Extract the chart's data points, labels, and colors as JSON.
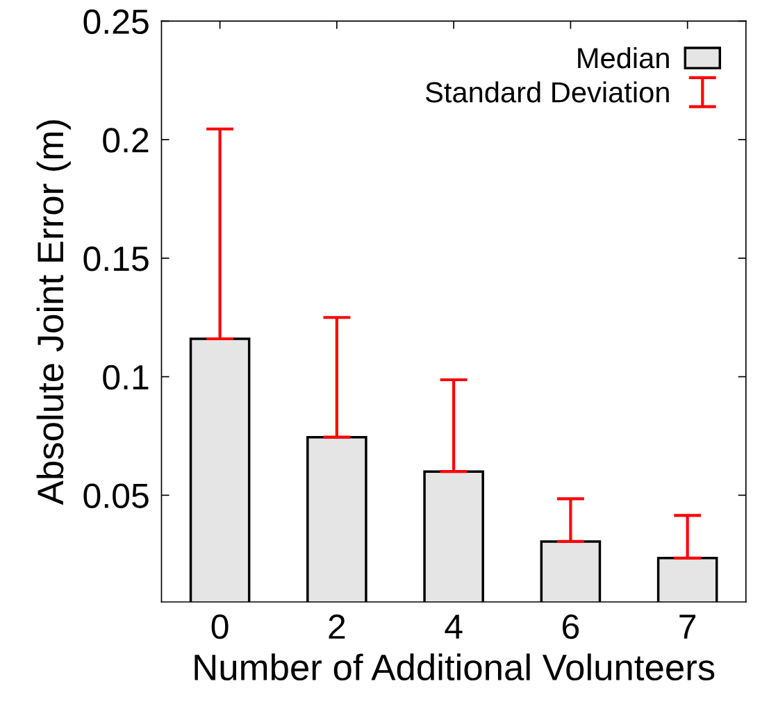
{
  "chart_data": {
    "type": "bar",
    "xlabel": "Number of Additional Volunteers",
    "ylabel": "Absolute Joint Error (m)",
    "categories": [
      "0",
      "2",
      "4",
      "6",
      "7"
    ],
    "series": [
      {
        "name": "Median",
        "color": "#e5e5e5",
        "values": [
          0.116,
          0.0745,
          0.06,
          0.0305,
          0.0235
        ],
        "errors": [
          [
            0.116,
            0.2045
          ],
          [
            0.0745,
            0.125
          ],
          [
            0.06,
            0.0987
          ],
          [
            0.0305,
            0.0485
          ],
          [
            0.0235,
            0.0415
          ]
        ]
      }
    ],
    "annotations": [
      "Standard Deviation"
    ],
    "ylim": [
      0.005,
      0.25
    ],
    "yticks": [
      0.05,
      0.1,
      0.15,
      0.2,
      0.25
    ],
    "grid": false,
    "legend": "top right"
  }
}
